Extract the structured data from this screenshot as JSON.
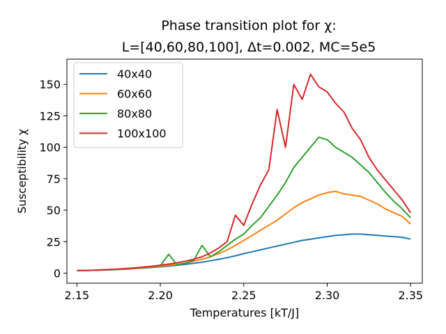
{
  "chart_data": {
    "type": "line",
    "title_line1": "Phase transition plot for χ:",
    "title_line2": "L=[40,60,80,100], Δt=0.002, MC=5e5",
    "xlabel": "Temperatures [kT/J]",
    "ylabel": "Susceptibility χ",
    "xlim": [
      2.144,
      2.357
    ],
    "ylim": [
      -8,
      170
    ],
    "xticks": [
      2.15,
      2.2,
      2.25,
      2.3,
      2.35
    ],
    "xtick_labels": [
      "2.15",
      "2.20",
      "2.25",
      "2.30",
      "2.35"
    ],
    "yticks": [
      0,
      25,
      50,
      75,
      100,
      125,
      150
    ],
    "ytick_labels": [
      "0",
      "25",
      "50",
      "75",
      "100",
      "125",
      "150"
    ],
    "legend_position": "upper-left",
    "grid": false,
    "series": [
      {
        "name": "40x40",
        "color": "#1f77b4",
        "x": [
          2.15,
          2.155,
          2.16,
          2.165,
          2.17,
          2.175,
          2.18,
          2.185,
          2.19,
          2.195,
          2.2,
          2.205,
          2.21,
          2.215,
          2.22,
          2.225,
          2.23,
          2.235,
          2.24,
          2.245,
          2.25,
          2.255,
          2.26,
          2.265,
          2.27,
          2.275,
          2.28,
          2.285,
          2.29,
          2.295,
          2.3,
          2.305,
          2.31,
          2.315,
          2.32,
          2.325,
          2.33,
          2.335,
          2.34,
          2.345,
          2.35
        ],
        "y": [
          2,
          2,
          2.2,
          2.4,
          2.6,
          2.9,
          3.2,
          3.6,
          4,
          4.5,
          5,
          5.6,
          6.2,
          7,
          7.8,
          8.7,
          9.8,
          11,
          12.3,
          13.8,
          15.5,
          17,
          18.5,
          20,
          21.5,
          23,
          24.5,
          26,
          27,
          28,
          29,
          30,
          30.5,
          31,
          31,
          30.5,
          30,
          29.5,
          29,
          28.5,
          27
        ]
      },
      {
        "name": "60x60",
        "color": "#ff7f0e",
        "x": [
          2.15,
          2.155,
          2.16,
          2.165,
          2.17,
          2.175,
          2.18,
          2.185,
          2.19,
          2.195,
          2.2,
          2.205,
          2.21,
          2.215,
          2.22,
          2.225,
          2.23,
          2.235,
          2.24,
          2.245,
          2.25,
          2.255,
          2.26,
          2.265,
          2.27,
          2.275,
          2.28,
          2.285,
          2.29,
          2.295,
          2.3,
          2.305,
          2.31,
          2.315,
          2.32,
          2.325,
          2.33,
          2.335,
          2.34,
          2.345,
          2.35
        ],
        "y": [
          2,
          2.1,
          2.3,
          2.5,
          2.8,
          3.1,
          3.4,
          3.8,
          4.3,
          4.9,
          5.5,
          6.2,
          7,
          8,
          9.5,
          11,
          13,
          15.5,
          18.5,
          22,
          26,
          30,
          34,
          38,
          42,
          47,
          52,
          56,
          59,
          62,
          64,
          65,
          63,
          62,
          61,
          58,
          55,
          51,
          48,
          45,
          39
        ]
      },
      {
        "name": "80x80",
        "color": "#2ca02c",
        "x": [
          2.15,
          2.155,
          2.16,
          2.165,
          2.17,
          2.175,
          2.18,
          2.185,
          2.19,
          2.195,
          2.2,
          2.205,
          2.21,
          2.215,
          2.22,
          2.225,
          2.23,
          2.235,
          2.24,
          2.245,
          2.25,
          2.255,
          2.26,
          2.265,
          2.27,
          2.275,
          2.28,
          2.285,
          2.29,
          2.295,
          2.3,
          2.305,
          2.31,
          2.315,
          2.32,
          2.325,
          2.33,
          2.335,
          2.34,
          2.345,
          2.35
        ],
        "y": [
          2,
          2.1,
          2.3,
          2.6,
          2.9,
          3.2,
          3.6,
          4.1,
          4.7,
          5.3,
          6,
          15,
          6.5,
          8,
          10,
          22,
          13,
          17,
          22,
          27,
          31,
          38,
          44,
          53,
          62,
          72,
          84,
          92,
          100,
          108,
          106,
          100,
          96,
          92,
          86,
          80,
          72,
          64,
          57,
          51,
          44
        ]
      },
      {
        "name": "100x100",
        "color": "#d62728",
        "x": [
          2.15,
          2.155,
          2.16,
          2.165,
          2.17,
          2.175,
          2.18,
          2.185,
          2.19,
          2.195,
          2.2,
          2.205,
          2.21,
          2.215,
          2.22,
          2.225,
          2.23,
          2.235,
          2.24,
          2.245,
          2.25,
          2.255,
          2.26,
          2.265,
          2.27,
          2.275,
          2.28,
          2.285,
          2.29,
          2.295,
          2.3,
          2.305,
          2.31,
          2.315,
          2.32,
          2.325,
          2.33,
          2.335,
          2.34,
          2.345,
          2.35
        ],
        "y": [
          2,
          2.1,
          2.3,
          2.6,
          2.9,
          3.3,
          3.7,
          4.2,
          4.8,
          5.5,
          6.3,
          7.2,
          8.2,
          9.5,
          11,
          13,
          16,
          20,
          25,
          46,
          38,
          55,
          70,
          82,
          130,
          100,
          150,
          138,
          158,
          148,
          144,
          135,
          128,
          115,
          106,
          92,
          82,
          74,
          66,
          58,
          48
        ]
      }
    ]
  }
}
